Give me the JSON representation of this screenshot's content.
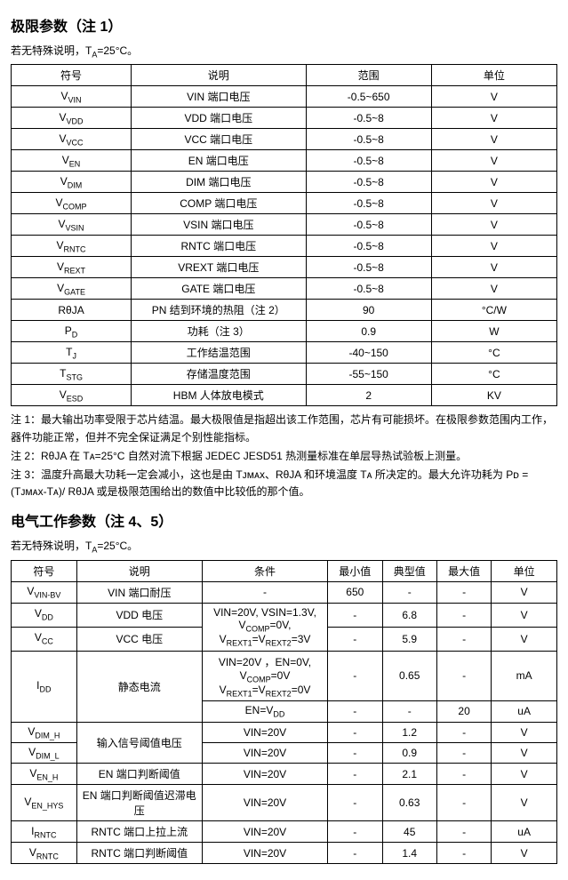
{
  "section1": {
    "title": "极限参数（注 1）",
    "intro_prefix": "若无特殊说明，T",
    "intro_sub": "A",
    "intro_suffix": "=25°C。",
    "headers": [
      "符号",
      "说明",
      "范围",
      "单位"
    ],
    "rows": [
      {
        "sym_pre": "V",
        "sym_sub": "VIN",
        "desc": "VIN 端口电压",
        "range": "-0.5~650",
        "unit": "V"
      },
      {
        "sym_pre": "V",
        "sym_sub": "VDD",
        "desc": "VDD 端口电压",
        "range": "-0.5~8",
        "unit": "V"
      },
      {
        "sym_pre": "V",
        "sym_sub": "VCC",
        "desc": "VCC 端口电压",
        "range": "-0.5~8",
        "unit": "V"
      },
      {
        "sym_pre": "V",
        "sym_sub": "EN",
        "desc": "EN 端口电压",
        "range": "-0.5~8",
        "unit": "V"
      },
      {
        "sym_pre": "V",
        "sym_sub": "DIM",
        "desc": "DIM 端口电压",
        "range": "-0.5~8",
        "unit": "V"
      },
      {
        "sym_pre": "V",
        "sym_sub": "COMP",
        "desc": "COMP 端口电压",
        "range": "-0.5~8",
        "unit": "V"
      },
      {
        "sym_pre": "V",
        "sym_sub": "VSIN",
        "desc": "VSIN 端口电压",
        "range": "-0.5~8",
        "unit": "V"
      },
      {
        "sym_pre": "V",
        "sym_sub": "RNTC",
        "desc": "RNTC 端口电压",
        "range": "-0.5~8",
        "unit": "V"
      },
      {
        "sym_pre": "V",
        "sym_sub": "REXT",
        "desc": "VREXT 端口电压",
        "range": "-0.5~8",
        "unit": "V"
      },
      {
        "sym_pre": "V",
        "sym_sub": "GATE",
        "desc": "GATE 端口电压",
        "range": "-0.5~8",
        "unit": "V"
      },
      {
        "sym_pre": "RθJA",
        "sym_sub": "",
        "desc": "PN 结到环境的热阻（注 2）",
        "range": "90",
        "unit": "°C/W"
      },
      {
        "sym_pre": "P",
        "sym_sub": "D",
        "desc": "功耗（注 3）",
        "range": "0.9",
        "unit": "W"
      },
      {
        "sym_pre": "T",
        "sym_sub": "J",
        "desc": "工作结温范围",
        "range": "-40~150",
        "unit": "°C"
      },
      {
        "sym_pre": "T",
        "sym_sub": "STG",
        "desc": "存储温度范围",
        "range": "-55~150",
        "unit": "°C"
      },
      {
        "sym_pre": "V",
        "sym_sub": "ESD",
        "desc": "HBM 人体放电模式",
        "range": "2",
        "unit": "KV"
      }
    ],
    "notes": [
      "注 1：最大输出功率受限于芯片结温。最大极限值是指超出该工作范围，芯片有可能损坏。在极限参数范围内工作，器件功能正常，但并不完全保证满足个别性能指标。",
      "注 2：RθJA 在 Tᴀ=25°C 自然对流下根据 JEDEC JESD51 热测量标准在单层导热试验板上测量。",
      "注 3：温度升高最大功耗一定会减小，这也是由 Tᴊᴍᴀx、RθJA 和环境温度 Tᴀ 所决定的。最大允许功耗为 Pᴅ = (Tᴊᴍᴀx-Tᴀ)/ RθJA 或是极限范围给出的数值中比较低的那个值。"
    ]
  },
  "section2": {
    "title": "电气工作参数（注 4、5）",
    "intro_prefix": "若无特殊说明，T",
    "intro_sub": "A",
    "intro_suffix": "=25°C。",
    "headers": [
      "符号",
      "说明",
      "条件",
      "最小值",
      "典型值",
      "最大值",
      "单位"
    ],
    "rows": [
      {
        "sym": "V<sub>VIN-BV</sub>",
        "desc": "VIN 端口耐压",
        "cond": "-",
        "min": "650",
        "typ": "-",
        "max": "-",
        "unit": "V",
        "desc_rowspan": 1
      },
      {
        "sym": "V<sub>DD</sub>",
        "desc": "VDD 电压",
        "cond": "VIN=20V, VSIN=1.3V,<br>V<sub>COMP</sub>=0V,<br>V<sub>REXT1</sub>=V<sub>REXT2</sub>=3V",
        "min": "-",
        "typ": "6.8",
        "max": "-",
        "unit": "V",
        "desc_rowspan": 1
      },
      {
        "sym": "V<sub>CC</sub>",
        "desc": "VCC 电压",
        "cond": "__merge_up__",
        "min": "-",
        "typ": "5.9",
        "max": "-",
        "unit": "V",
        "desc_rowspan": 1
      },
      {
        "sym": "I<sub>DD</sub>",
        "desc": "静态电流",
        "cond": "VIN=20V ，EN=0V,<br>V<sub>COMP</sub>=0V<br>V<sub>REXT1</sub>=V<sub>REXT2</sub>=0V",
        "min": "-",
        "typ": "0.65",
        "max": "-",
        "unit": "mA",
        "desc_rowspan": 2,
        "sym_rowspan": 2
      },
      {
        "sym": "",
        "desc": "",
        "cond": "EN=V<sub>DD</sub>",
        "min": "-",
        "typ": "-",
        "max": "20",
        "unit": "uA"
      },
      {
        "sym": "V<sub>DIM_H</sub>",
        "desc": "输入信号阈值电压",
        "cond": "VIN=20V",
        "min": "-",
        "typ": "1.2",
        "max": "-",
        "unit": "V",
        "desc_rowspan": 2
      },
      {
        "sym": "V<sub>DIM_L</sub>",
        "desc": "",
        "cond": "VIN=20V",
        "min": "-",
        "typ": "0.9",
        "max": "-",
        "unit": "V"
      },
      {
        "sym": "V<sub>EN_H</sub>",
        "desc": "EN 端口判断阈值",
        "cond": "VIN=20V",
        "min": "-",
        "typ": "2.1",
        "max": "-",
        "unit": "V",
        "desc_rowspan": 1
      },
      {
        "sym": "V<sub>EN_HYS</sub>",
        "desc": "EN 端口判断阈值迟滞电压",
        "cond": "VIN=20V",
        "min": "-",
        "typ": "0.63",
        "max": "-",
        "unit": "V",
        "desc_rowspan": 1
      },
      {
        "sym": "I<sub>RNTC</sub>",
        "desc": "RNTC 端口上拉上流",
        "cond": "VIN=20V",
        "min": "-",
        "typ": "45",
        "max": "-",
        "unit": "uA",
        "desc_rowspan": 1
      },
      {
        "sym": "V<sub>RNTC</sub>",
        "desc": "RNTC 端口判断阈值",
        "cond": "VIN=20V",
        "min": "-",
        "typ": "1.4",
        "max": "-",
        "unit": "V",
        "desc_rowspan": 1
      }
    ]
  },
  "col_widths": {
    "t1": [
      "22%",
      "32%",
      "23%",
      "23%"
    ],
    "t2": [
      "12%",
      "23%",
      "23%",
      "10%",
      "10%",
      "10%",
      "12%"
    ]
  }
}
